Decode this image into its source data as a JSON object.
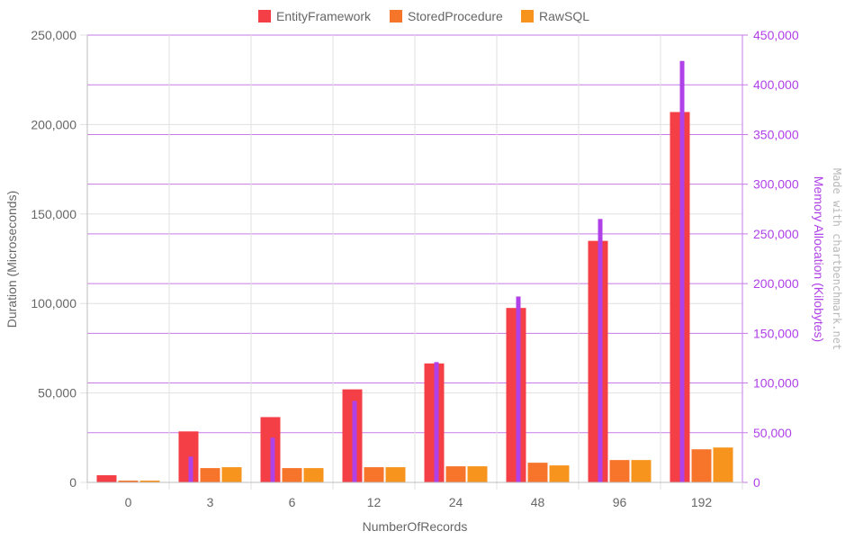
{
  "chart_data": {
    "type": "bar",
    "categories": [
      "0",
      "3",
      "6",
      "12",
      "24",
      "48",
      "96",
      "192"
    ],
    "series": [
      {
        "name": "EntityFramework",
        "color": "#f43f46",
        "values": [
          4000,
          28500,
          36500,
          52000,
          66500,
          97500,
          135000,
          207000
        ]
      },
      {
        "name": "StoredProcedure",
        "color": "#f7742b",
        "values": [
          1000,
          8000,
          8000,
          8500,
          9000,
          11000,
          12500,
          18500
        ]
      },
      {
        "name": "RawSQL",
        "color": "#f7941d",
        "values": [
          1000,
          8500,
          8000,
          8500,
          9000,
          9500,
          12500,
          19500
        ]
      }
    ],
    "memory_series": {
      "color": "#b040e8",
      "values": [
        500,
        26000,
        45000,
        82000,
        121000,
        187000,
        265000,
        424000
      ]
    },
    "xlabel": "NumberOfRecords",
    "ylabel": "Duration (Microseconds)",
    "ylabel_right": "Memory Allocation (Kilobytes)",
    "ylim": [
      0,
      250000
    ],
    "ylim_right": [
      0,
      450000
    ],
    "yticks": [
      0,
      50000,
      100000,
      150000,
      200000,
      250000
    ],
    "yticks_right": [
      0,
      50000,
      100000,
      150000,
      200000,
      250000,
      300000,
      350000,
      400000,
      450000
    ],
    "legend_position": "top-center",
    "grid": true,
    "watermark": "Made with chartbenchmark.net"
  }
}
